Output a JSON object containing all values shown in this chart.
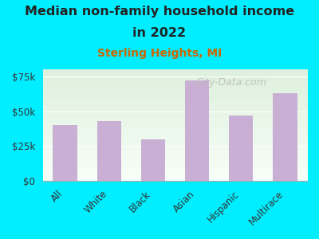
{
  "title_line1": "Median non-family household income",
  "title_line2": "in 2022",
  "subtitle": "Sterling Heights, MI",
  "watermark": "City-Data.com",
  "categories": [
    "All",
    "White",
    "Black",
    "Asian",
    "Hispanic",
    "Multirace"
  ],
  "values": [
    40000,
    43000,
    30000,
    72000,
    47000,
    63000
  ],
  "bar_color": "#c9afd4",
  "title_fontsize": 11.5,
  "subtitle_fontsize": 10,
  "subtitle_color": "#cc6600",
  "title_color": "#222222",
  "background_color": "#00eeff",
  "plot_bg_top": "#ddf0dd",
  "plot_bg_bottom": "#f8fff8",
  "ylim": [
    0,
    80000
  ],
  "yticks": [
    0,
    25000,
    50000,
    75000
  ],
  "ytick_labels": [
    "$0",
    "$25k",
    "$50k",
    "$75k"
  ],
  "watermark_color": "#bbbbbb",
  "watermark_fontsize": 9
}
